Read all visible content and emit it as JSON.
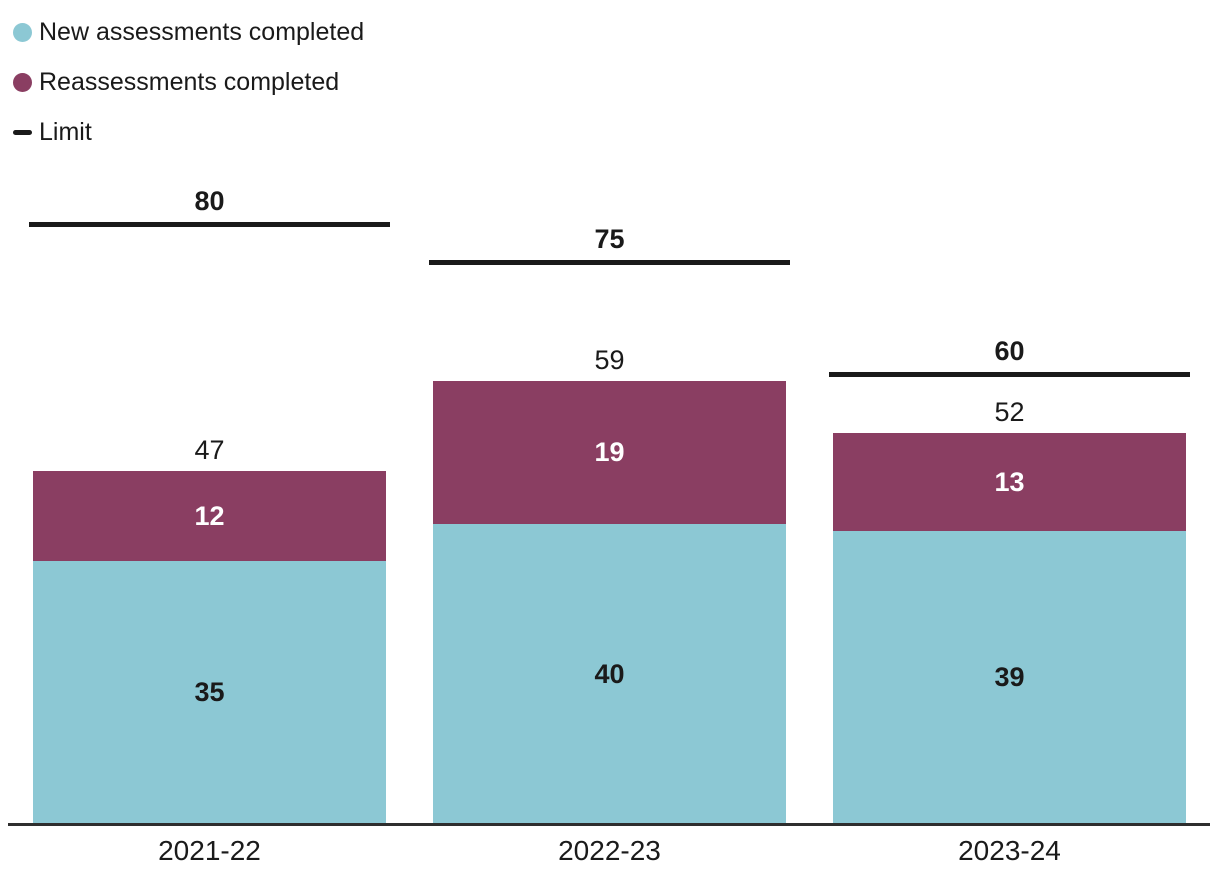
{
  "chart_data": {
    "type": "bar",
    "variant": "stacked-columns-with-limit-lines",
    "title": "",
    "xlabel": "",
    "ylabel": "",
    "categories": [
      "2021-22",
      "2022-23",
      "2023-24"
    ],
    "series": [
      {
        "name": "New assessments completed",
        "color": "#8CC8D4",
        "label_color": "#1a1a1a",
        "values": [
          35,
          40,
          39
        ]
      },
      {
        "name": "Reassessments completed",
        "color": "#8A3E62",
        "label_color": "#ffffff",
        "values": [
          12,
          19,
          13
        ]
      }
    ],
    "totals": [
      47,
      59,
      52
    ],
    "limit": {
      "name": "Limit",
      "color": "#1a1a1a",
      "values": [
        80,
        75,
        60
      ]
    },
    "ylim": [
      0,
      110
    ],
    "grid": false,
    "legend_position": "top-left",
    "value_labels": {
      "segment_labels_inside_bars": true,
      "total_labels_above_bars": true,
      "limit_labels_above_lines": true
    }
  }
}
